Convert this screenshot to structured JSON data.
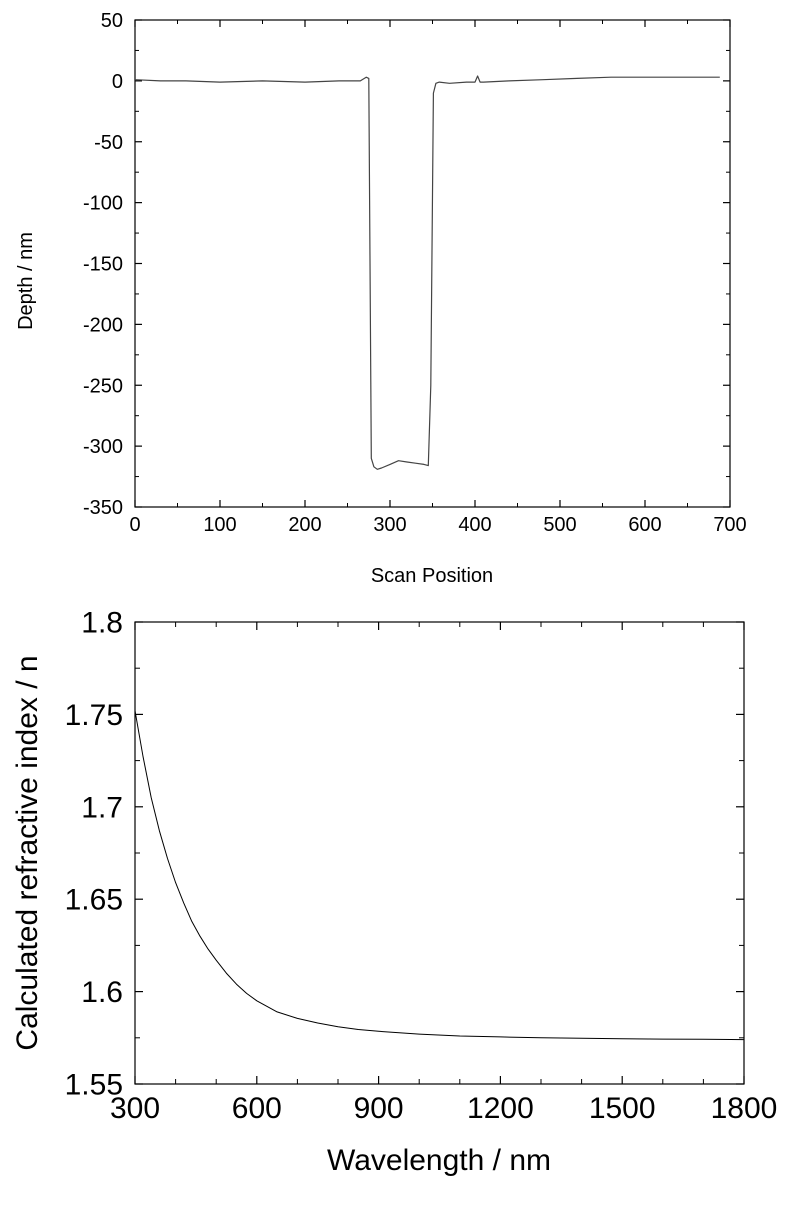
{
  "chart_data": [
    {
      "type": "line",
      "title": "",
      "xlabel": "Scan Position",
      "ylabel": "Depth / nm",
      "xlim": [
        0,
        700
      ],
      "ylim": [
        -350,
        50
      ],
      "xticks": [
        0,
        100,
        200,
        300,
        400,
        500,
        600,
        700
      ],
      "yticks": [
        50,
        0,
        -50,
        -100,
        -150,
        -200,
        -250,
        -300,
        -350
      ],
      "grid": false,
      "legend": "none",
      "color": "#444444",
      "series": [
        {
          "x": [
            0,
            30,
            60,
            100,
            150,
            200,
            240,
            265,
            272,
            275,
            278,
            281,
            285,
            290,
            300,
            310,
            320,
            330,
            340,
            345,
            348,
            351,
            354,
            358,
            370,
            390,
            400,
            403,
            406,
            410,
            440,
            480,
            520,
            560,
            600,
            640,
            688
          ],
          "y": [
            1,
            0,
            0,
            -1,
            0,
            -1,
            0,
            0,
            3,
            2,
            -310,
            -317,
            -319,
            -318,
            -315,
            -312,
            -313,
            -314,
            -315,
            -316,
            -250,
            -10,
            -2,
            -1,
            -2,
            -1,
            -1,
            4,
            -1,
            -1,
            0,
            1,
            2,
            3,
            3,
            3,
            3
          ]
        }
      ]
    },
    {
      "type": "line",
      "title": "",
      "xlabel": "Wavelength / nm",
      "ylabel": "Calculated refractive index / n",
      "xlim": [
        300,
        1800
      ],
      "ylim": [
        1.55,
        1.8
      ],
      "xticks": [
        300,
        600,
        900,
        1200,
        1500,
        1800
      ],
      "ytick_labels": [
        "1.8",
        "1.75",
        "1.7",
        "1.65",
        "1.6",
        "1.55"
      ],
      "yticks": [
        1.8,
        1.75,
        1.7,
        1.65,
        1.6,
        1.55
      ],
      "grid": false,
      "legend": "none",
      "color": "#000000",
      "series": [
        {
          "x": [
            300,
            320,
            340,
            360,
            380,
            400,
            420,
            440,
            460,
            480,
            500,
            525,
            550,
            575,
            600,
            650,
            700,
            750,
            800,
            850,
            900,
            1000,
            1100,
            1200,
            1300,
            1400,
            1500,
            1600,
            1700,
            1800
          ],
          "y": [
            1.752,
            1.727,
            1.705,
            1.687,
            1.672,
            1.659,
            1.648,
            1.638,
            1.63,
            1.623,
            1.617,
            1.61,
            1.604,
            1.599,
            1.595,
            1.589,
            1.5855,
            1.583,
            1.581,
            1.5795,
            1.5785,
            1.577,
            1.576,
            1.5755,
            1.575,
            1.5748,
            1.5745,
            1.5743,
            1.5742,
            1.574
          ]
        }
      ]
    }
  ]
}
